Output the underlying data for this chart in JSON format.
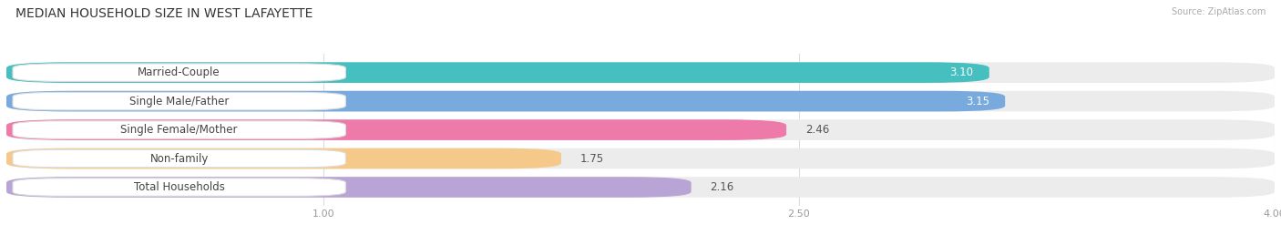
{
  "title": "MEDIAN HOUSEHOLD SIZE IN WEST LAFAYETTE",
  "source": "Source: ZipAtlas.com",
  "categories": [
    "Married-Couple",
    "Single Male/Father",
    "Single Female/Mother",
    "Non-family",
    "Total Households"
  ],
  "values": [
    3.1,
    3.15,
    2.46,
    1.75,
    2.16
  ],
  "bar_colors": [
    "#45bfbf",
    "#78aadd",
    "#ee7aaa",
    "#f5c98a",
    "#b8a5d5"
  ],
  "xmin": 0.0,
  "xmax": 4.0,
  "xticks": [
    1.0,
    2.5,
    4.0
  ],
  "background_color": "#ffffff",
  "bar_bg_color": "#ececec",
  "title_fontsize": 10,
  "label_fontsize": 8.5,
  "value_fontsize": 8.5,
  "tick_fontsize": 8
}
